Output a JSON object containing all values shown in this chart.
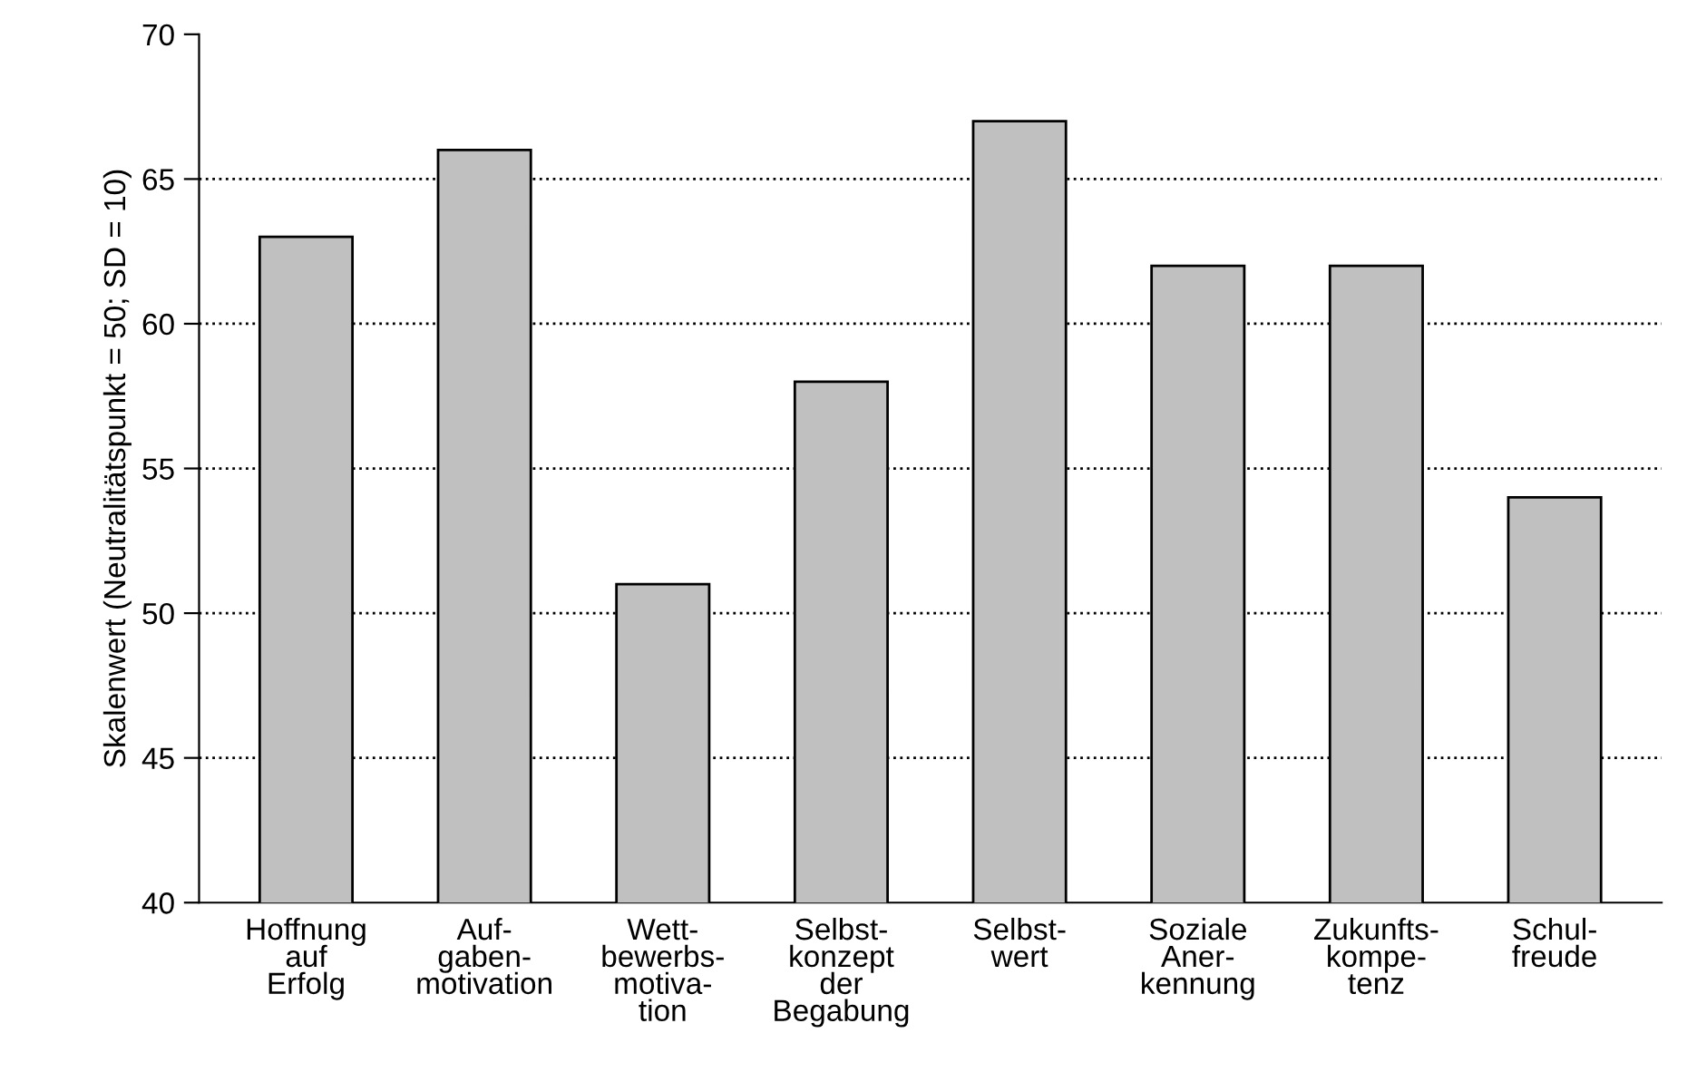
{
  "chart_data": {
    "type": "bar",
    "ylabel": "Skalenwert (Neutralitätspunkt = 50; SD = 10)",
    "categories": [
      "Hoffnung\nauf\nErfolg",
      "Auf-\ngaben-\nmotivation",
      "Wett-\nbewerbs-\nmotiva-\ntion",
      "Selbst-\nkonzept\nder\nBegabung",
      "Selbst-\nwert",
      "Soziale\nAner-\nkennung",
      "Zukunfts-\nkompe-\ntenz",
      "Schul-\nfreude"
    ],
    "values": [
      63,
      66,
      51,
      58,
      67,
      62,
      62,
      54
    ],
    "color": "#c0c0c0",
    "ylim": [
      40,
      70
    ],
    "yticks": [
      40,
      45,
      50,
      55,
      60,
      65,
      70
    ],
    "grid": "y",
    "line_style": "dotted"
  }
}
